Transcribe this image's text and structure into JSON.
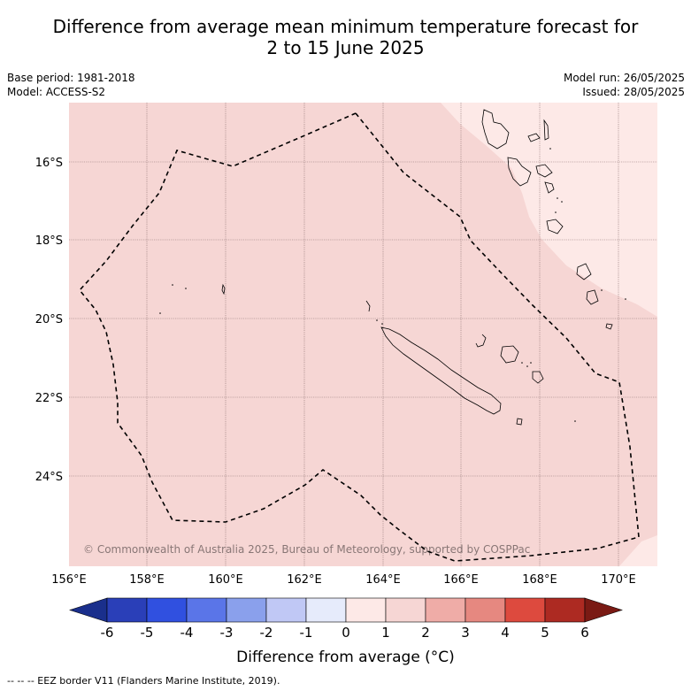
{
  "title_line1": "Difference from average mean minimum temperature forecast for",
  "title_line2": "2 to 15 June 2025",
  "base_period": "Base period: 1981-2018",
  "model": "Model: ACCESS-S2",
  "model_run": "Model run: 26/05/2025",
  "issued": "Issued: 28/05/2025",
  "lat_labels": [
    "16°S",
    "18°S",
    "20°S",
    "22°S",
    "24°S"
  ],
  "lon_labels": [
    "156°E",
    "158°E",
    "160°E",
    "162°E",
    "164°E",
    "166°E",
    "168°E",
    "170°E"
  ],
  "copyright": "© Commonwealth of Australia 2025, Bureau of Meteorology, supported by COSPPac",
  "colorbar": {
    "ticks": [
      "-6",
      "-5",
      "-4",
      "-3",
      "-2",
      "-1",
      "0",
      "1",
      "2",
      "3",
      "4",
      "5",
      "6"
    ],
    "colors": [
      "#1a2f8c",
      "#2a3fb8",
      "#3050e0",
      "#5a75e8",
      "#8aa0ec",
      "#c0c8f5",
      "#e6ebfb",
      "#fde9e7",
      "#f6d6d4",
      "#efaca7",
      "#e68880",
      "#dd4a3e",
      "#ad2a22",
      "#7a1a14"
    ],
    "label": "Difference from average (°C)"
  },
  "map_colors": {
    "class_0_1": "#fde9e7",
    "class_1_2": "#f6d6d4"
  },
  "footer": "-- -- -- EEZ border V11 (Flanders Marine Institute, 2019)."
}
